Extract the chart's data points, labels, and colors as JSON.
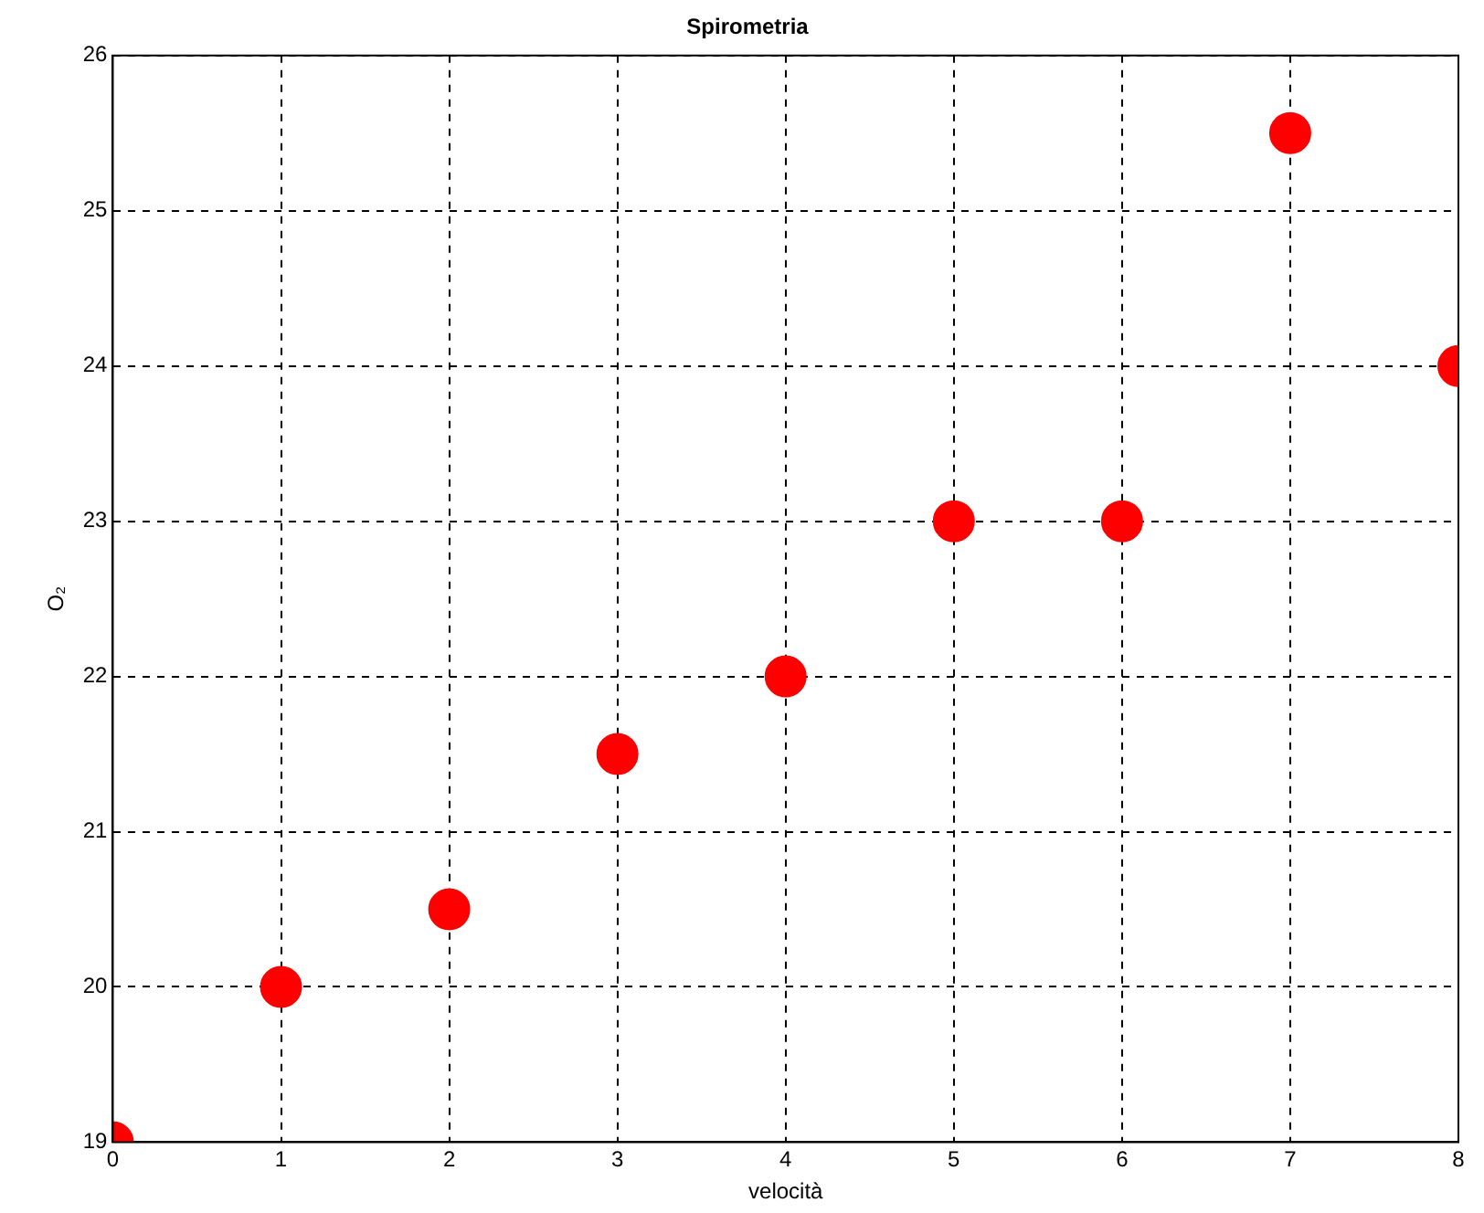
{
  "chart_data": {
    "type": "scatter",
    "title": "Spirometria",
    "xlabel": "velocità",
    "ylabel": "O₂",
    "x": [
      0,
      1,
      2,
      3,
      4,
      5,
      6,
      7,
      8
    ],
    "series": [
      {
        "color": "#ff0000",
        "values": [
          19,
          20,
          20.5,
          21.5,
          22,
          23,
          23,
          25.5,
          24
        ]
      }
    ],
    "xlim": [
      0,
      8
    ],
    "xticks": [
      0,
      1,
      2,
      3,
      4,
      5,
      6,
      7,
      8
    ],
    "ylim": [
      19,
      26
    ],
    "yticks": [
      19,
      20,
      21,
      22,
      23,
      24,
      25,
      26
    ],
    "grid": true,
    "marker": "circle",
    "line_style": "dashed"
  }
}
